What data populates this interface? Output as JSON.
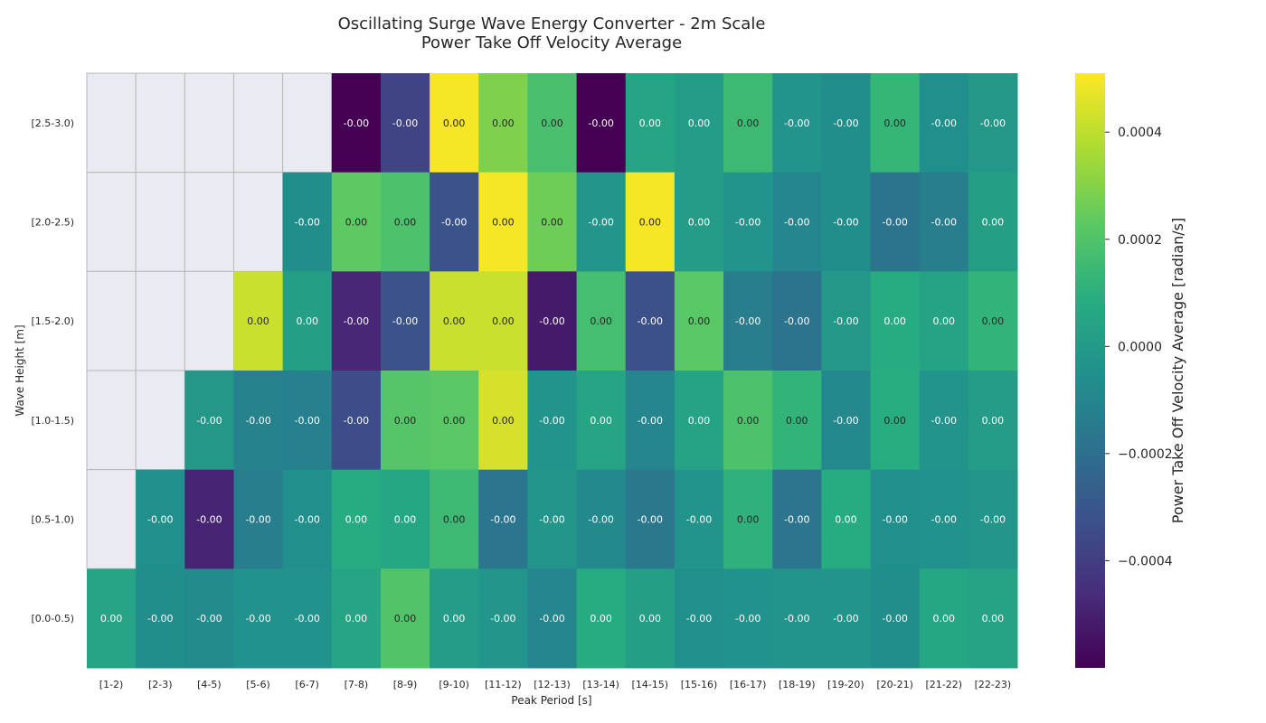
{
  "chart_data": {
    "type": "heatmap",
    "title_line1": "Oscillating Surge Wave Energy Converter - 2m Scale",
    "title_line2": "Power Take Off Velocity Average",
    "xlabel": "Peak Period [s]",
    "ylabel": "Wave Height [m]",
    "colorbar_label": "Power Take Off Velocity Average [radian/s]",
    "colormap": "viridis",
    "vmin": -0.0006,
    "vmax": 0.00051,
    "colorbar_ticks": [
      0.0004,
      0.0002,
      0.0,
      -0.0002,
      -0.0004
    ],
    "colorbar_tick_labels": [
      "0.0004",
      "0.0002",
      "0.0000",
      "−0.0002",
      "−0.0004"
    ],
    "missing_color": "#eaeaf2",
    "x_categories": [
      "[1-2)",
      "[2-3)",
      "[4-5)",
      "[5-6)",
      "[6-7)",
      "[7-8)",
      "[8-9)",
      "[9-10)",
      "[11-12)",
      "[12-13)",
      "[13-14)",
      "[14-15)",
      "[15-16)",
      "[16-17)",
      "[18-19)",
      "[19-20)",
      "[20-21)",
      "[21-22)",
      "[22-23)"
    ],
    "y_categories": [
      "[2.5-3.0)",
      "[2.0-2.5)",
      "[1.5-2.0)",
      "[1.0-1.5)",
      "[0.5-1.0)",
      "[0.0-0.5)"
    ],
    "values": [
      [
        null,
        null,
        null,
        null,
        null,
        -0.0006,
        -0.00038,
        0.0005,
        0.00029,
        0.00018,
        -0.0006,
        5e-05,
        1e-05,
        0.00015,
        -3e-05,
        -6e-05,
        0.00013,
        -5e-05,
        -1e-05
      ],
      [
        null,
        null,
        null,
        null,
        -6e-05,
        0.00023,
        0.00019,
        -0.00032,
        0.0005,
        0.00026,
        -2e-05,
        0.0005,
        1e-05,
        -3e-05,
        -9e-05,
        -6e-05,
        -0.00018,
        -0.00013,
        2e-05
      ],
      [
        null,
        null,
        null,
        0.00042,
        2e-05,
        -0.00048,
        -0.00032,
        0.00042,
        0.00042,
        -0.00052,
        0.00017,
        -0.00033,
        0.00022,
        -0.00013,
        -0.00018,
        -1e-05,
        8e-05,
        4e-05,
        0.00012
      ],
      [
        null,
        null,
        -1e-05,
        -0.00011,
        -0.00012,
        -0.00034,
        0.00021,
        0.00022,
        0.00044,
        -3e-05,
        5e-05,
        -9e-05,
        4e-05,
        0.00019,
        0.00012,
        -8e-05,
        9e-05,
        -3e-05,
        1e-05
      ],
      [
        null,
        -5e-05,
        -0.00049,
        -0.00013,
        -5e-05,
        8e-05,
        6e-05,
        0.00015,
        -0.00017,
        -2e-05,
        -8e-05,
        -0.00016,
        -3e-05,
        0.00011,
        -0.00017,
        8e-05,
        -5e-05,
        -4e-05,
        -2e-05
      ],
      [
        5e-05,
        -6e-05,
        -7e-05,
        -4e-05,
        -4e-05,
        5e-05,
        0.0002,
        1e-05,
        -2e-05,
        -0.0001,
        8e-05,
        2e-05,
        -5e-05,
        -4e-05,
        -3e-05,
        -3e-05,
        -6e-05,
        6e-05,
        4e-05
      ]
    ],
    "cell_labels": [
      [
        "",
        "",
        "",
        "",
        "",
        "-0.00",
        "-0.00",
        "0.00",
        "0.00",
        "0.00",
        "-0.00",
        "0.00",
        "0.00",
        "0.00",
        "-0.00",
        "-0.00",
        "0.00",
        "-0.00",
        "-0.00"
      ],
      [
        "",
        "",
        "",
        "",
        "-0.00",
        "0.00",
        "0.00",
        "-0.00",
        "0.00",
        "0.00",
        "-0.00",
        "0.00",
        "0.00",
        "-0.00",
        "-0.00",
        "-0.00",
        "-0.00",
        "-0.00",
        "0.00"
      ],
      [
        "",
        "",
        "",
        "0.00",
        "0.00",
        "-0.00",
        "-0.00",
        "0.00",
        "0.00",
        "-0.00",
        "0.00",
        "-0.00",
        "0.00",
        "-0.00",
        "-0.00",
        "-0.00",
        "0.00",
        "0.00",
        "0.00"
      ],
      [
        "",
        "",
        "-0.00",
        "-0.00",
        "-0.00",
        "-0.00",
        "0.00",
        "0.00",
        "0.00",
        "-0.00",
        "0.00",
        "-0.00",
        "0.00",
        "0.00",
        "0.00",
        "-0.00",
        "0.00",
        "-0.00",
        "0.00"
      ],
      [
        "",
        "-0.00",
        "-0.00",
        "-0.00",
        "-0.00",
        "0.00",
        "0.00",
        "0.00",
        "-0.00",
        "-0.00",
        "-0.00",
        "-0.00",
        "-0.00",
        "0.00",
        "-0.00",
        "0.00",
        "-0.00",
        "-0.00",
        "-0.00"
      ],
      [
        "0.00",
        "-0.00",
        "-0.00",
        "-0.00",
        "-0.00",
        "0.00",
        "0.00",
        "0.00",
        "-0.00",
        "-0.00",
        "0.00",
        "0.00",
        "-0.00",
        "-0.00",
        "-0.00",
        "-0.00",
        "-0.00",
        "0.00",
        "0.00"
      ]
    ]
  }
}
